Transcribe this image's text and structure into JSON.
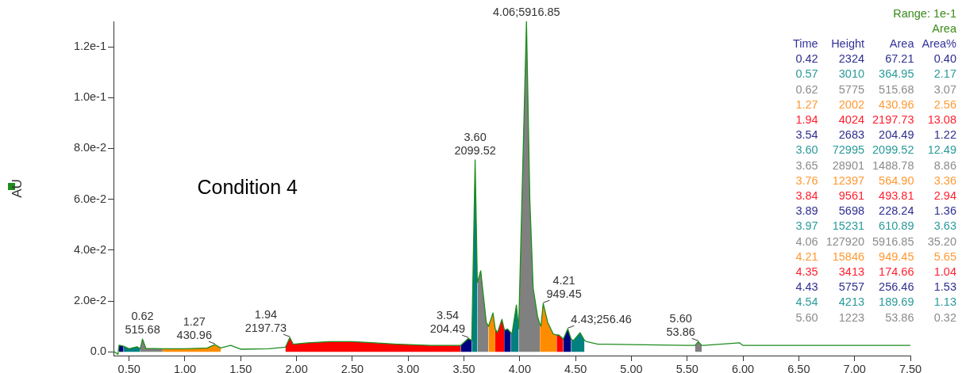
{
  "chart_data": [
    {
      "type": "line",
      "ylabel": "AU",
      "annotations": [
        "Condition 4",
        {
          "text": "0.62\n515.68",
          "x": 0.62,
          "y": 0.005
        },
        {
          "text": "1.27\n430.96",
          "x": 1.27,
          "y": 0.0028
        },
        {
          "text": "1.94\n2197.73",
          "x": 1.94,
          "y": 0.0056
        },
        {
          "text": "3.54\n204.49",
          "x": 3.54,
          "y": 0.0053
        },
        {
          "text": "3.60\n2099.52",
          "x": 3.6,
          "y": 0.0755
        },
        {
          "text": "4.06;5916.85",
          "x": 4.06,
          "y": 0.13
        },
        {
          "text": "4.21\n949.45",
          "x": 4.21,
          "y": 0.019
        },
        {
          "text": "4.43;256.46",
          "x": 4.43,
          "y": 0.009
        },
        {
          "text": "5.60\n53.86",
          "x": 5.6,
          "y": 0.004
        }
      ],
      "xlim": [
        0.36,
        7.5
      ],
      "ylim": [
        -0.0015,
        0.13
      ],
      "xticks": [
        {
          "value": 0.5,
          "label": "0.50"
        },
        {
          "value": 1,
          "label": "1.00"
        },
        {
          "value": 1.5,
          "label": "1.50"
        },
        {
          "value": 2,
          "label": "2.00"
        },
        {
          "value": 2.5,
          "label": "2.50"
        },
        {
          "value": 3,
          "label": "3.00"
        },
        {
          "value": 3.5,
          "label": "3.50"
        },
        {
          "value": 4,
          "label": "4.00"
        },
        {
          "value": 4.5,
          "label": "4.50"
        },
        {
          "value": 5,
          "label": "5.00"
        },
        {
          "value": 5.5,
          "label": "5.50"
        },
        {
          "value": 6,
          "label": "6.00"
        },
        {
          "value": 6.5,
          "label": "6.50"
        },
        {
          "value": 7,
          "label": "7.00"
        },
        {
          "value": 7.5,
          "label": "7.50"
        }
      ],
      "yticks": [
        {
          "value": 0,
          "label": "0.0"
        },
        {
          "value": 0.02,
          "label": "2.0e-2"
        },
        {
          "value": 0.04,
          "label": "4.0e-2"
        },
        {
          "value": 0.06,
          "label": "6.0e-2"
        },
        {
          "value": 0.08,
          "label": "8.0e-2"
        },
        {
          "value": 0.1,
          "label": "1.0e-1"
        },
        {
          "value": 0.12,
          "label": "1.2e-1"
        }
      ],
      "grid": false,
      "marker": "none",
      "series": [
        {
          "type": "line",
          "color": "#1e8c1e",
          "x": [
            0.36,
            0.4,
            0.41,
            0.45,
            0.5,
            0.57,
            0.6,
            0.62,
            0.65,
            0.8,
            1.0,
            1.2,
            1.27,
            1.32,
            1.41,
            1.5,
            1.75,
            1.9,
            1.94,
            1.97,
            2.1,
            2.3,
            2.5,
            2.7,
            2.9,
            3.2,
            3.47,
            3.54,
            3.57,
            3.6,
            3.62,
            3.65,
            3.7,
            3.72,
            3.76,
            3.78,
            3.8,
            3.84,
            3.86,
            3.87,
            3.89,
            3.92,
            3.93,
            3.97,
            3.99,
            4.06,
            4.09,
            4.12,
            4.16,
            4.18,
            4.19,
            4.21,
            4.25,
            4.3,
            4.33,
            4.35,
            4.39,
            4.43,
            4.46,
            4.48,
            4.54,
            4.58,
            4.6,
            4.7,
            5.0,
            5.5,
            5.57,
            5.6,
            5.63,
            5.65,
            5.97,
            6.0,
            6.5,
            7.0,
            7.5
          ],
          "values": [
            0.0002,
            -0.001,
            0.0026,
            0.0022,
            0.0012,
            0.002,
            0.0012,
            0.005,
            0.0013,
            0.0012,
            0.0012,
            0.0015,
            0.0028,
            0.0015,
            0.0025,
            0.001,
            0.0012,
            0.0018,
            0.0056,
            0.003,
            0.0035,
            0.004,
            0.004,
            0.0035,
            0.003,
            0.0025,
            0.0025,
            0.0053,
            0.0044,
            0.0755,
            0.0272,
            0.0319,
            0.0116,
            0.01,
            0.0153,
            0.009,
            0.0075,
            0.0128,
            0.009,
            0.0085,
            0.009,
            0.0075,
            0.007,
            0.0184,
            0.009,
            0.13,
            0.06,
            0.025,
            0.0137,
            0.011,
            0.01,
            0.019,
            0.0116,
            0.007,
            0.0066,
            0.0066,
            0.005,
            0.009,
            0.005,
            0.0044,
            0.0075,
            0.0045,
            0.004,
            0.003,
            0.0028,
            0.0025,
            0.0025,
            0.004,
            0.0025,
            0.0025,
            0.0035,
            0.0025,
            0.0025,
            0.0025,
            0.0025
          ]
        },
        {
          "type": "area",
          "color": "#000080",
          "x": [
            0.41,
            0.45
          ],
          "values": [
            0.0026,
            0.0022
          ]
        },
        {
          "type": "area",
          "color": "#008080",
          "x": [
            0.45,
            0.5,
            0.57,
            0.6
          ],
          "values": [
            0.0022,
            0.0012,
            0.002,
            0.0012
          ]
        },
        {
          "type": "area",
          "color": "#808080",
          "x": [
            0.6,
            0.62,
            0.65,
            0.8
          ],
          "values": [
            0.0012,
            0.005,
            0.0013,
            0.0012
          ]
        },
        {
          "type": "area",
          "color": "#ff8c00",
          "x": [
            0.8,
            1.0,
            1.2,
            1.27,
            1.32
          ],
          "values": [
            0.0012,
            0.0012,
            0.0015,
            0.0028,
            0.0015
          ]
        },
        {
          "type": "area",
          "color": "#ff0000",
          "x": [
            1.9,
            1.94,
            1.97,
            2.1,
            2.3,
            2.5,
            2.7,
            2.9,
            3.2,
            3.47
          ],
          "values": [
            0.0018,
            0.0056,
            0.003,
            0.0035,
            0.004,
            0.004,
            0.0035,
            0.003,
            0.0025,
            0.0025
          ]
        },
        {
          "type": "area",
          "color": "#000080",
          "x": [
            3.47,
            3.54,
            3.57
          ],
          "values": [
            0.0025,
            0.0053,
            0.0044
          ]
        },
        {
          "type": "area",
          "color": "#008080",
          "x": [
            3.57,
            3.6,
            3.62
          ],
          "values": [
            0.0044,
            0.0755,
            0.0272
          ]
        },
        {
          "type": "area",
          "color": "#808080",
          "x": [
            3.62,
            3.65,
            3.7,
            3.72
          ],
          "values": [
            0.0272,
            0.0319,
            0.0116,
            0.01
          ]
        },
        {
          "type": "area",
          "color": "#ff8c00",
          "x": [
            3.72,
            3.76,
            3.78
          ],
          "values": [
            0.01,
            0.0153,
            0.009
          ]
        },
        {
          "type": "area",
          "color": "#ff0000",
          "x": [
            3.78,
            3.8,
            3.84,
            3.86
          ],
          "values": [
            0.009,
            0.0075,
            0.0128,
            0.009
          ]
        },
        {
          "type": "area",
          "color": "#000080",
          "x": [
            3.86,
            3.87,
            3.89,
            3.92
          ],
          "values": [
            0.009,
            0.0085,
            0.009,
            0.0075
          ]
        },
        {
          "type": "area",
          "color": "#008080",
          "x": [
            3.92,
            3.93,
            3.97,
            3.99
          ],
          "values": [
            0.0075,
            0.007,
            0.0184,
            0.009
          ]
        },
        {
          "type": "area",
          "color": "#808080",
          "x": [
            3.99,
            4.06,
            4.09,
            4.12,
            4.16,
            4.18
          ],
          "values": [
            0.009,
            0.13,
            0.06,
            0.025,
            0.0137,
            0.011
          ]
        },
        {
          "type": "area",
          "color": "#ff8c00",
          "x": [
            4.18,
            4.19,
            4.21,
            4.25,
            4.3,
            4.33
          ],
          "values": [
            0.011,
            0.01,
            0.019,
            0.0116,
            0.007,
            0.0066
          ]
        },
        {
          "type": "area",
          "color": "#ff0000",
          "x": [
            4.33,
            4.35,
            4.39
          ],
          "values": [
            0.0066,
            0.0066,
            0.005
          ]
        },
        {
          "type": "area",
          "color": "#000080",
          "x": [
            4.39,
            4.43,
            4.46
          ],
          "values": [
            0.005,
            0.009,
            0.005
          ]
        },
        {
          "type": "area",
          "color": "#008080",
          "x": [
            4.46,
            4.48,
            4.54,
            4.58
          ],
          "values": [
            0.005,
            0.0044,
            0.0075,
            0.0045
          ]
        },
        {
          "type": "area",
          "color": "#808080",
          "x": [
            5.57,
            5.6,
            5.63
          ],
          "values": [
            0.0025,
            0.004,
            0.0025
          ]
        }
      ]
    },
    {
      "type": "other",
      "annotations": [
        "Range: 1e-1",
        "Area"
      ],
      "categories": [
        "Time",
        "Height",
        "Area",
        "Area%"
      ],
      "series": [
        {
          "color": "#2e2e8f",
          "values": [
            0.42,
            2324,
            67.21,
            0.4
          ],
          "value_labels": [
            "0.42",
            "2324",
            "67.21",
            "0.40"
          ]
        },
        {
          "color": "#2a9a9a",
          "values": [
            0.57,
            3010,
            364.95,
            2.17
          ],
          "value_labels": [
            "0.57",
            "3010",
            "364.95",
            "2.17"
          ]
        },
        {
          "color": "#8c8c8c",
          "values": [
            0.62,
            5775,
            515.68,
            3.07
          ],
          "value_labels": [
            "0.62",
            "5775",
            "515.68",
            "3.07"
          ]
        },
        {
          "color": "#ff9933",
          "values": [
            1.27,
            2002,
            430.96,
            2.56
          ],
          "value_labels": [
            "1.27",
            "2002",
            "430.96",
            "2.56"
          ]
        },
        {
          "color": "#ff2030",
          "values": [
            1.94,
            4024,
            2197.73,
            13.08
          ],
          "value_labels": [
            "1.94",
            "4024",
            "2197.73",
            "13.08"
          ]
        },
        {
          "color": "#2e2e8f",
          "values": [
            3.54,
            2683,
            204.49,
            1.22
          ],
          "value_labels": [
            "3.54",
            "2683",
            "204.49",
            "1.22"
          ]
        },
        {
          "color": "#2a9a9a",
          "values": [
            3.6,
            72995,
            2099.52,
            12.49
          ],
          "value_labels": [
            "3.60",
            "72995",
            "2099.52",
            "12.49"
          ]
        },
        {
          "color": "#8c8c8c",
          "values": [
            3.65,
            28901,
            1488.78,
            8.86
          ],
          "value_labels": [
            "3.65",
            "28901",
            "1488.78",
            "8.86"
          ]
        },
        {
          "color": "#ff9933",
          "values": [
            3.76,
            12397,
            564.9,
            3.36
          ],
          "value_labels": [
            "3.76",
            "12397",
            "564.90",
            "3.36"
          ]
        },
        {
          "color": "#ff2030",
          "values": [
            3.84,
            9561,
            493.81,
            2.94
          ],
          "value_labels": [
            "3.84",
            "9561",
            "493.81",
            "2.94"
          ]
        },
        {
          "color": "#2e2e8f",
          "values": [
            3.89,
            5698,
            228.24,
            1.36
          ],
          "value_labels": [
            "3.89",
            "5698",
            "228.24",
            "1.36"
          ]
        },
        {
          "color": "#2a9a9a",
          "values": [
            3.97,
            15231,
            610.89,
            3.63
          ],
          "value_labels": [
            "3.97",
            "15231",
            "610.89",
            "3.63"
          ]
        },
        {
          "color": "#8c8c8c",
          "values": [
            4.06,
            127920,
            5916.85,
            35.2
          ],
          "value_labels": [
            "4.06",
            "127920",
            "5916.85",
            "35.20"
          ]
        },
        {
          "color": "#ff9933",
          "values": [
            4.21,
            15846,
            949.45,
            5.65
          ],
          "value_labels": [
            "4.21",
            "15846",
            "949.45",
            "5.65"
          ]
        },
        {
          "color": "#ff2030",
          "values": [
            4.35,
            3413,
            174.66,
            1.04
          ],
          "value_labels": [
            "4.35",
            "3413",
            "174.66",
            "1.04"
          ]
        },
        {
          "color": "#2e2e8f",
          "values": [
            4.43,
            5757,
            256.46,
            1.53
          ],
          "value_labels": [
            "4.43",
            "5757",
            "256.46",
            "1.53"
          ]
        },
        {
          "color": "#2a9a9a",
          "values": [
            4.54,
            4213,
            189.69,
            1.13
          ],
          "value_labels": [
            "4.54",
            "4213",
            "189.69",
            "1.13"
          ]
        },
        {
          "color": "#8c8c8c",
          "values": [
            5.6,
            1223,
            53.86,
            0.32
          ],
          "value_labels": [
            "5.60",
            "1223",
            "53.86",
            "0.32"
          ]
        }
      ]
    }
  ]
}
